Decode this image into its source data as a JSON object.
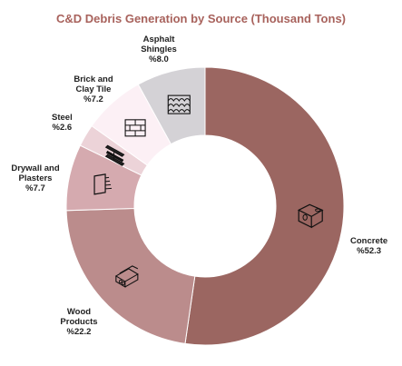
{
  "chart_data": {
    "type": "pie",
    "title": "C&D Debris Generation by Source (Thousand Tons)",
    "donut": true,
    "slices": [
      {
        "label": "Concrete",
        "value_label": "%52.3",
        "value": 52.3,
        "color": "#9b6661",
        "icon": "concrete-block-icon"
      },
      {
        "label": "Wood Products",
        "value_label": "%22.2",
        "value": 22.2,
        "color": "#bb8c8c",
        "icon": "wood-planks-icon"
      },
      {
        "label": "Drywall and Plasters",
        "value_label": "%7.7",
        "value": 7.7,
        "color": "#d5aaaf",
        "icon": "drywall-sheets-icon"
      },
      {
        "label": "Steel",
        "value_label": "%2.6",
        "value": 2.6,
        "color": "#ecd3d8",
        "icon": "steel-beam-icon"
      },
      {
        "label": "Brick and Clay Tile",
        "value_label": "%7.2",
        "value": 7.2,
        "color": "#fcf0f5",
        "icon": "brick-wall-icon"
      },
      {
        "label": "Asphalt Shingles",
        "value_label": "%8.0",
        "value": 8.0,
        "color": "#d4d2d6",
        "icon": "shingles-icon"
      }
    ]
  }
}
